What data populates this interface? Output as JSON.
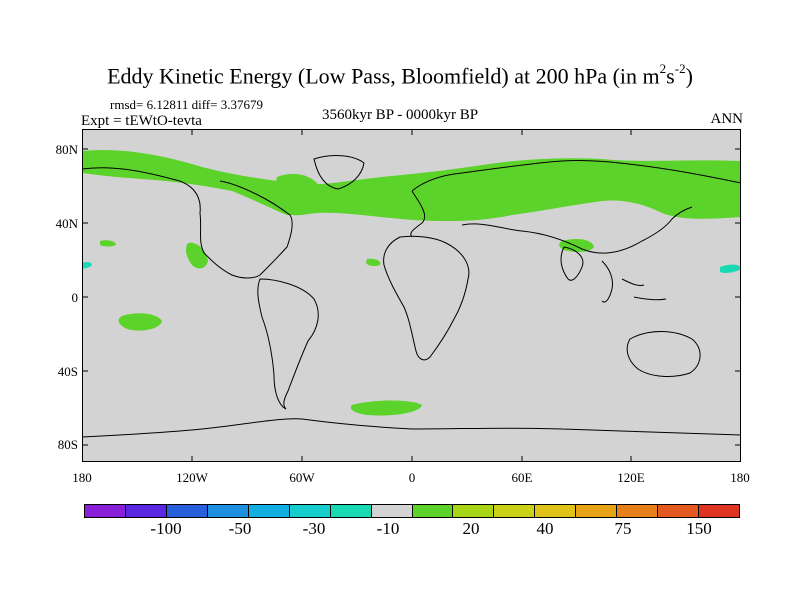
{
  "title": {
    "main": "Eddy Kinetic Energy (Low Pass, Bloomfield) at 200 hPa (in m",
    "sup1": "2",
    "mid": "s",
    "sup2": "-2",
    "end": ")"
  },
  "stats_line": "rmsd= 6.12811 diff= 3.37679",
  "experiment": "Expt = tEWtO-tevta",
  "period": "3560kyr BP - 0000kyr BP",
  "season": "ANN",
  "y_labels": [
    "80N",
    "40N",
    "0",
    "40S",
    "80S"
  ],
  "x_labels": [
    "180",
    "120W",
    "60W",
    "0",
    "60E",
    "120E",
    "180"
  ],
  "colorbar": {
    "colors": [
      "#8a1fd8",
      "#5a28e0",
      "#2860dc",
      "#1e90e0",
      "#12aee0",
      "#16cccc",
      "#19d9b3",
      "#d3d3d3",
      "#5cd32a",
      "#a8d515",
      "#cbd117",
      "#e0c318",
      "#e7a318",
      "#e5801b",
      "#e3591f",
      "#dd3522"
    ],
    "labels": [
      "-100",
      "-50",
      "-30",
      "-10",
      "20",
      "40",
      "75",
      "150"
    ]
  },
  "map": {
    "background": "#d3d3d3",
    "positive_fill": "#5cd32a",
    "negative_fill": "#19d9b3"
  }
}
